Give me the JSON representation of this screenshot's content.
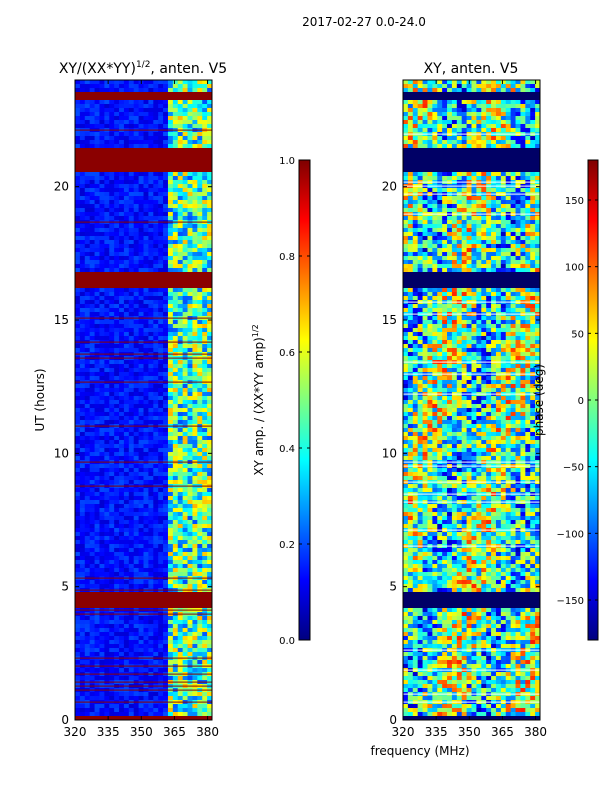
{
  "suptitle": "2017-02-27 0.0-24.0",
  "colors": {
    "jet": [
      "#00007f",
      "#0000ff",
      "#007fff",
      "#00ffff",
      "#7fff7f",
      "#ffff00",
      "#ff7f00",
      "#ff0000",
      "#7f0000"
    ],
    "flag": "#8b0000",
    "dark": "#000066"
  },
  "chart_data": [
    {
      "type": "heatmap",
      "title": "XY/(XX*YY)^{1/2}, anten. V5",
      "title_main": "XY/(XX*YY)",
      "title_sup": "1/2",
      "title_rest": ", anten. V5",
      "xlabel": "",
      "ylabel": "UT (hours)",
      "xlim": [
        320,
        382
      ],
      "ylim": [
        0,
        24
      ],
      "xticks": [
        "320",
        "335",
        "350",
        "365",
        "380"
      ],
      "yticks": [
        "0",
        "5",
        "10",
        "15",
        "20"
      ],
      "flagged_ut_ranges": [
        [
          0.0,
          0.15
        ],
        [
          4.2,
          4.85
        ],
        [
          16.2,
          16.8
        ],
        [
          20.6,
          21.4
        ],
        [
          23.3,
          23.6
        ]
      ],
      "active_freq_range": [
        361,
        381
      ],
      "colorbar": {
        "label_main": "XY amp. / (XX*YY amp)",
        "label_sup": "1/2",
        "range": [
          0.0,
          1.0
        ],
        "ticks": [
          "0.0",
          "0.2",
          "0.4",
          "0.6",
          "0.8",
          "1.0"
        ]
      }
    },
    {
      "type": "heatmap",
      "title": "XY, anten. V5",
      "xlabel": "frequency (MHz)",
      "ylabel": "",
      "xlim": [
        320,
        382
      ],
      "ylim": [
        0,
        24
      ],
      "xticks": [
        "320",
        "335",
        "350",
        "365",
        "380"
      ],
      "yticks": [
        "0",
        "5",
        "10",
        "15",
        "20"
      ],
      "flagged_ut_ranges": [
        [
          0.0,
          0.15
        ],
        [
          4.2,
          4.85
        ],
        [
          16.2,
          16.8
        ],
        [
          20.6,
          21.4
        ],
        [
          23.3,
          23.6
        ]
      ],
      "colorbar": {
        "label_main": "phase (deg)",
        "range": [
          -180,
          180
        ],
        "ticks": [
          "150",
          "100",
          "50",
          "0",
          "−50",
          "−100",
          "−150"
        ],
        "tick_values": [
          150,
          100,
          50,
          0,
          -50,
          -100,
          -150
        ]
      }
    }
  ]
}
